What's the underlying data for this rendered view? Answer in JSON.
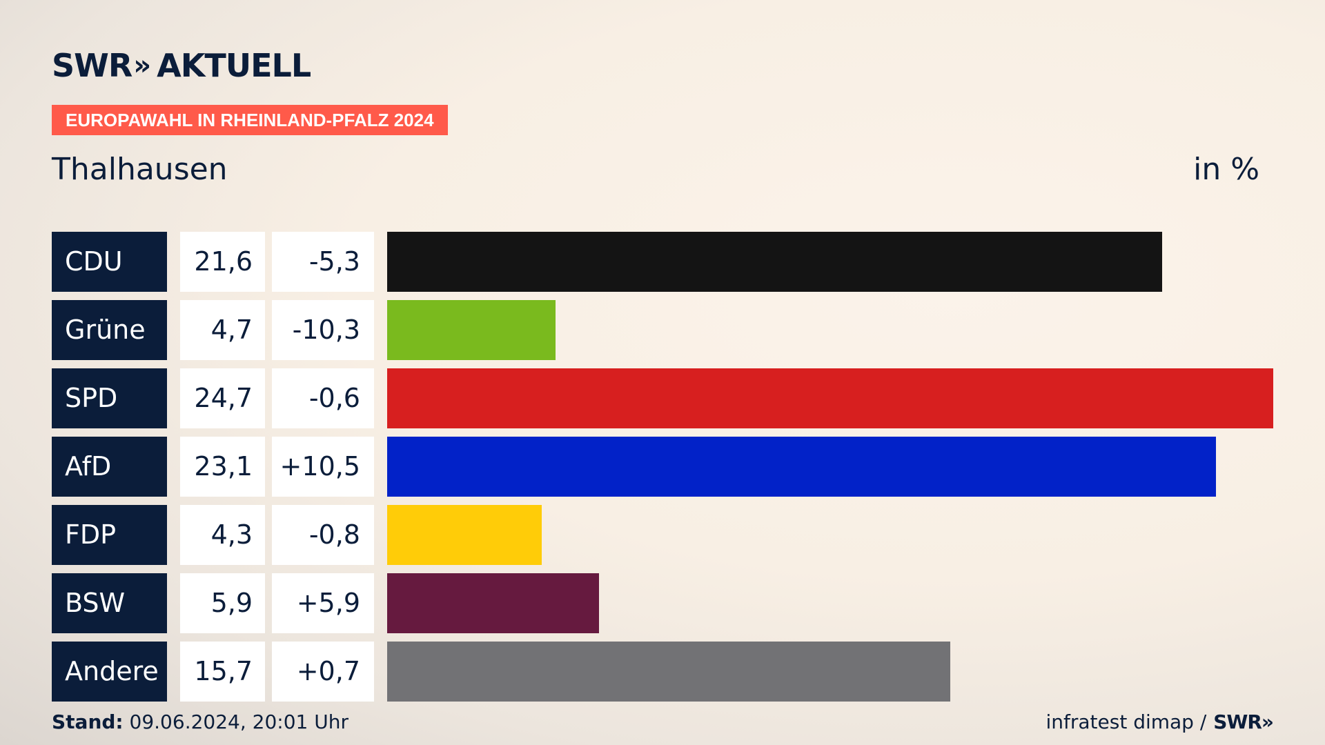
{
  "header": {
    "logo_text": "SWR",
    "logo_chevrons": "»",
    "logo_suffix": "AKTUELL",
    "badge": "EUROPAWAHL IN RHEINLAND-PFALZ 2024",
    "region": "Thalhausen",
    "unit": "in %"
  },
  "colors": {
    "accent": "#ff5a4a",
    "navy": "#0b1d3a"
  },
  "chart_data": {
    "type": "bar",
    "orientation": "horizontal",
    "categories": [
      "CDU",
      "Grüne",
      "SPD",
      "AfD",
      "FDP",
      "BSW",
      "Andere"
    ],
    "values": [
      21.6,
      4.7,
      24.7,
      23.1,
      4.3,
      5.9,
      15.7
    ],
    "value_labels": [
      "21,6",
      "4,7",
      "24,7",
      "23,1",
      "4,3",
      "5,9",
      "15,7"
    ],
    "diff_labels": [
      "-5,3",
      "-10,3",
      "-0,6",
      "+10,5",
      "-0,8",
      "+5,9",
      "+0,7"
    ],
    "bar_colors": [
      "#141414",
      "#7aba1e",
      "#d71f1f",
      "#0222c8",
      "#ffcc08",
      "#661a3f",
      "#727275"
    ],
    "xlim": [
      0,
      24.7
    ]
  },
  "footer": {
    "stand_label": "Stand:",
    "stand_value": "09.06.2024, 20:01 Uhr",
    "source": "infratest dimap /",
    "source_logo": "SWR»"
  }
}
